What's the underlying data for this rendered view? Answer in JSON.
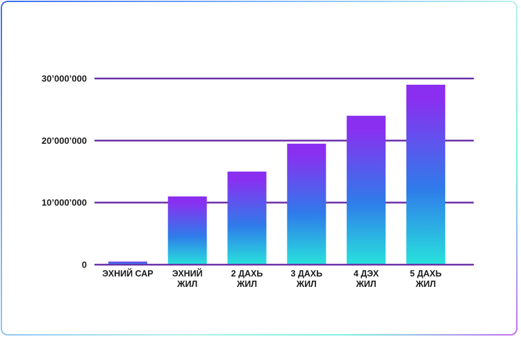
{
  "colors": {
    "grid": "#6a2fa8",
    "bar_top": "#8a2ff0",
    "bar_mid": "#2f7bea",
    "bar_bottom": "#28e2dc",
    "text": "#1a1a1a"
  },
  "chart_data": {
    "type": "bar",
    "title": "",
    "xlabel": "",
    "ylabel": "",
    "ylim": [
      0,
      30000000
    ],
    "grid": true,
    "yticks": [
      {
        "value": 0,
        "label": "0"
      },
      {
        "value": 10000000,
        "label": "10’000’000"
      },
      {
        "value": 20000000,
        "label": "20’000’000"
      },
      {
        "value": 30000000,
        "label": "30’000’000"
      }
    ],
    "categories": [
      [
        "ЭХНИЙ САР"
      ],
      [
        "ЭХНИЙ",
        "ЖИЛ"
      ],
      [
        "2 ДАХЬ",
        "ЖИЛ"
      ],
      [
        "3 ДАХЬ",
        "ЖИЛ"
      ],
      [
        "4 ДЭХ",
        "ЖИЛ"
      ],
      [
        "5 ДАХЬ",
        "ЖИЛ"
      ]
    ],
    "values": [
      500000,
      11000000,
      15000000,
      19500000,
      24000000,
      29000000
    ]
  }
}
